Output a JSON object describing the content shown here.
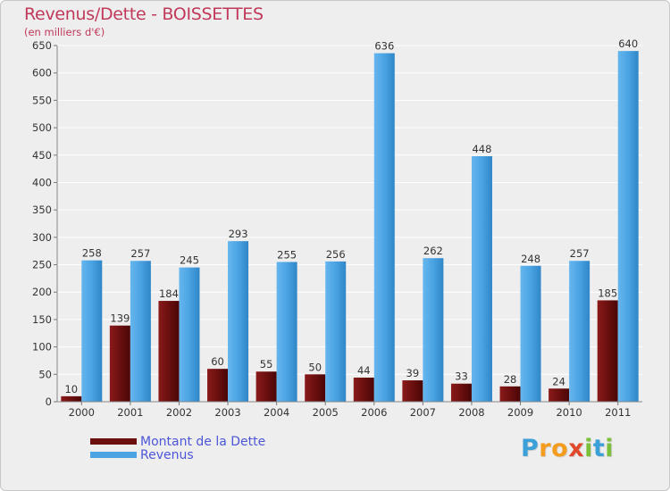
{
  "header": {
    "title": "Revenus/Dette - BOISSETTES",
    "subtitle": "(en milliers d'€)"
  },
  "legend": {
    "items": [
      {
        "label": "Montant de la Dette",
        "color": "#6b0f0f"
      },
      {
        "label": "Revenus",
        "color": "#4aa3e3"
      }
    ]
  },
  "logo": {
    "text": "Proxiti",
    "letters": [
      {
        "ch": "P",
        "color": "#3b9fd8"
      },
      {
        "ch": "r",
        "color": "#f39c1d"
      },
      {
        "ch": "o",
        "color": "#f39c1d"
      },
      {
        "ch": "x",
        "color": "#e04a2a"
      },
      {
        "ch": "i",
        "color": "#7bbf3a"
      },
      {
        "ch": "t",
        "color": "#3b9fd8"
      },
      {
        "ch": "i",
        "color": "#7bbf3a"
      }
    ]
  },
  "chart_data": {
    "type": "bar",
    "title": "Revenus/Dette - BOISSETTES",
    "subtitle": "(en milliers d'€)",
    "categories": [
      "2000",
      "2001",
      "2002",
      "2003",
      "2004",
      "2005",
      "2006",
      "2007",
      "2008",
      "2009",
      "2010",
      "2011"
    ],
    "series": [
      {
        "name": "Montant de la Dette",
        "color": "#6b0f0f",
        "values": [
          10,
          139,
          184,
          60,
          55,
          50,
          44,
          39,
          33,
          28,
          24,
          185
        ]
      },
      {
        "name": "Revenus",
        "color": "#4aa3e3",
        "values": [
          258,
          257,
          245,
          293,
          255,
          256,
          636,
          262,
          448,
          248,
          257,
          640
        ]
      }
    ],
    "ylim": [
      0,
      650
    ],
    "yticks": [
      0,
      50,
      100,
      150,
      200,
      250,
      300,
      350,
      400,
      450,
      500,
      550,
      600,
      650
    ],
    "grid": true,
    "legend_position": "bottom-left",
    "data_labels": true
  }
}
